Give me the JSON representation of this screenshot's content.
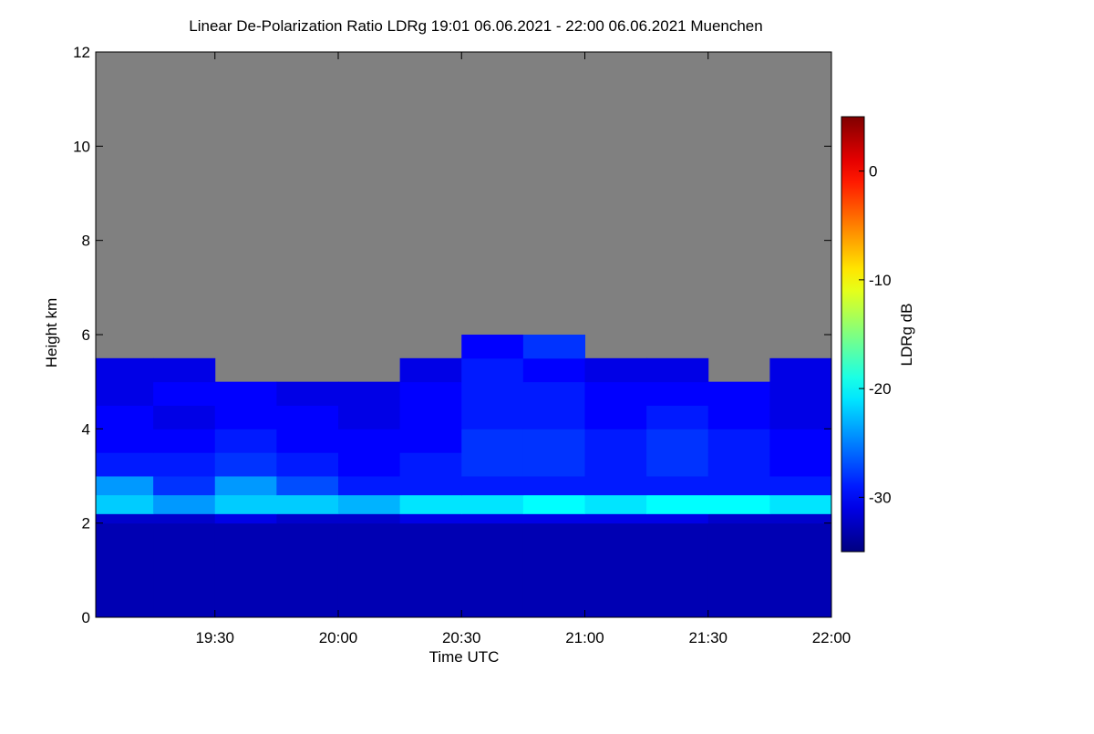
{
  "chart_data": {
    "type": "heatmap",
    "title": "Linear De-Polarization Ratio LDRg   19:01 06.06.2021 - 22:00 06.06.2021 Muenchen",
    "x_label": "Time UTC",
    "y_label": "Height km",
    "colorbar_label": "LDRg dB",
    "colormap": "jet",
    "missing_color": "#808080",
    "x_bins": [
      1141,
      1155,
      1170,
      1185,
      1200,
      1215,
      1230,
      1245,
      1260,
      1275,
      1290,
      1305,
      1320
    ],
    "y_bins": [
      0,
      0.5,
      1,
      1.5,
      2,
      2.2,
      2.6,
      3,
      3.5,
      4,
      4.5,
      5,
      5.5,
      6,
      12
    ],
    "z": [
      [
        -33,
        -33,
        -33,
        -33,
        -33,
        -33,
        -33,
        -33,
        -33,
        -33,
        -33,
        -33
      ],
      [
        -33,
        -33,
        -33,
        -33,
        -33,
        -33,
        -33,
        -33,
        -33,
        -33,
        -33,
        -33
      ],
      [
        -33,
        -33,
        -33,
        -33,
        -33,
        -33,
        -33,
        -33,
        -33,
        -33,
        -33,
        -33
      ],
      [
        -33,
        -33,
        -33,
        -33,
        -33,
        -33,
        -33,
        -33,
        -33,
        -33,
        -33,
        -33
      ],
      [
        -32,
        -32,
        -31,
        -32,
        -32,
        -31,
        -31,
        -31,
        -31,
        -31,
        -32,
        -32
      ],
      [
        -22,
        -24,
        -22,
        -22,
        -23,
        -21,
        -21,
        -20,
        -21,
        -20,
        -20,
        -21
      ],
      [
        -24,
        -28,
        -24,
        -27,
        -29,
        -29,
        -29,
        -29,
        -29,
        -29,
        -29,
        -29
      ],
      [
        -29,
        -29,
        -28,
        -29,
        -30,
        -29,
        -28,
        -28,
        -29,
        -28,
        -29,
        -30
      ],
      [
        -30,
        -30,
        -29,
        -30,
        -30,
        -30,
        -28,
        -28,
        -29,
        -28,
        -29,
        -30
      ],
      [
        -30,
        -31,
        -30,
        -30,
        -31,
        -30,
        -29,
        -29,
        -30,
        -29,
        -30,
        -31
      ],
      [
        -31,
        -30,
        -30,
        -31,
        -31,
        -30,
        -29,
        -29,
        -30,
        -30,
        -30,
        -31
      ],
      [
        -31,
        -31,
        null,
        null,
        null,
        -31,
        -29,
        -30,
        -31,
        -31,
        null,
        -31
      ],
      [
        null,
        null,
        null,
        null,
        null,
        null,
        -30,
        -28,
        null,
        null,
        null,
        null
      ],
      [
        null,
        null,
        null,
        null,
        null,
        null,
        null,
        null,
        null,
        null,
        null,
        null
      ]
    ],
    "xlim": [
      1141,
      1320
    ],
    "xticks": [
      {
        "value": 1170,
        "label": "19:30"
      },
      {
        "value": 1200,
        "label": "20:00"
      },
      {
        "value": 1230,
        "label": "20:30"
      },
      {
        "value": 1260,
        "label": "21:00"
      },
      {
        "value": 1290,
        "label": "21:30"
      },
      {
        "value": 1320,
        "label": "22:00"
      }
    ],
    "ylim": [
      0,
      12
    ],
    "yticks": [
      0,
      2,
      4,
      6,
      8,
      10,
      12
    ],
    "zlim": [
      -35,
      5
    ],
    "zticks": [
      -30,
      -20,
      -10,
      0
    ]
  }
}
